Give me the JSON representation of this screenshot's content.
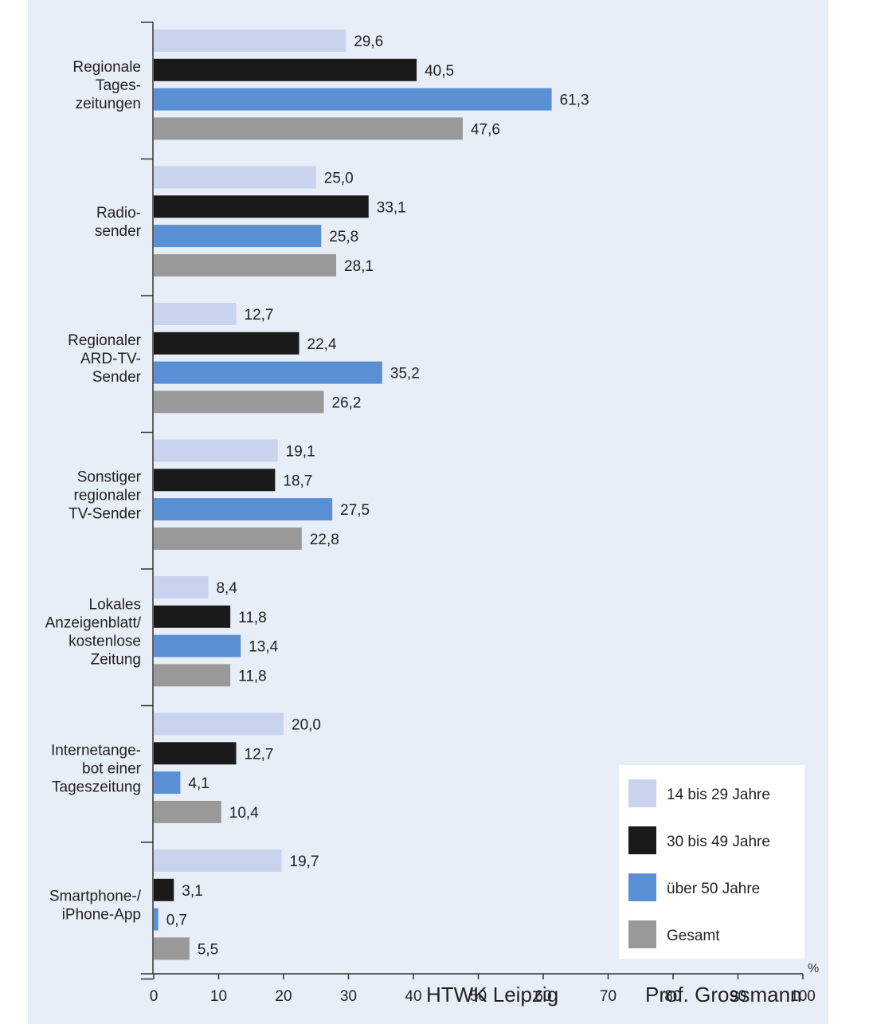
{
  "chart_data": {
    "type": "bar",
    "orientation": "horizontal",
    "categories": [
      [
        "Regionale",
        "Tages-",
        "zeitungen"
      ],
      [
        "Radio-",
        "sender"
      ],
      [
        "Regionaler",
        "ARD-TV-",
        "Sender"
      ],
      [
        "Sonstiger",
        "regionaler",
        "TV-Sender"
      ],
      [
        "Lokales",
        "Anzeigenblatt/",
        "kostenlose",
        "Zeitung"
      ],
      [
        "Internetange-",
        "bot einer",
        "Tageszeitung"
      ],
      [
        "Smartphone-/",
        "iPhone-App"
      ]
    ],
    "series": [
      {
        "name": "14 bis 29 Jahre",
        "color": "#c9d3ee",
        "values": [
          29.6,
          25.0,
          12.7,
          19.1,
          8.4,
          20.0,
          19.7
        ],
        "labels": [
          "29,6",
          "25,0",
          "12,7",
          "19,1",
          "8,4",
          "20,0",
          "19,7"
        ]
      },
      {
        "name": "30 bis 49 Jahre",
        "color": "#1a1a1a",
        "values": [
          40.5,
          33.1,
          22.4,
          18.7,
          11.8,
          12.7,
          3.1
        ],
        "labels": [
          "40,5",
          "33,1",
          "22,4",
          "18,7",
          "11,8",
          "12,7",
          "3,1"
        ]
      },
      {
        "name": "über 50 Jahre",
        "color": "#5b8fd4",
        "values": [
          61.3,
          25.8,
          35.2,
          27.5,
          13.4,
          4.1,
          0.7
        ],
        "labels": [
          "61,3",
          "25,8",
          "35,2",
          "27,5",
          "13,4",
          "4,1",
          "0,7"
        ]
      },
      {
        "name": "Gesamt",
        "color": "#999999",
        "values": [
          47.6,
          28.1,
          26.2,
          22.8,
          11.8,
          10.4,
          5.5
        ],
        "labels": [
          "47,6",
          "28,1",
          "26,2",
          "22,8",
          "11,8",
          "10,4",
          "5,5"
        ]
      }
    ],
    "xlim": [
      0,
      100
    ],
    "xticks": [
      0,
      10,
      20,
      30,
      40,
      50,
      60,
      70,
      80,
      90,
      100
    ],
    "xtick_labels": [
      "0",
      "10",
      "20",
      "30",
      "40",
      "50",
      "60",
      "70",
      "80",
      "90",
      "100"
    ],
    "x_unit": "%",
    "legend_position": "bottom-right",
    "grid": false,
    "background_color": "#e8eef7"
  },
  "footer": {
    "left": "HTWK Leipzig",
    "right": "Prof. Grossmann"
  }
}
